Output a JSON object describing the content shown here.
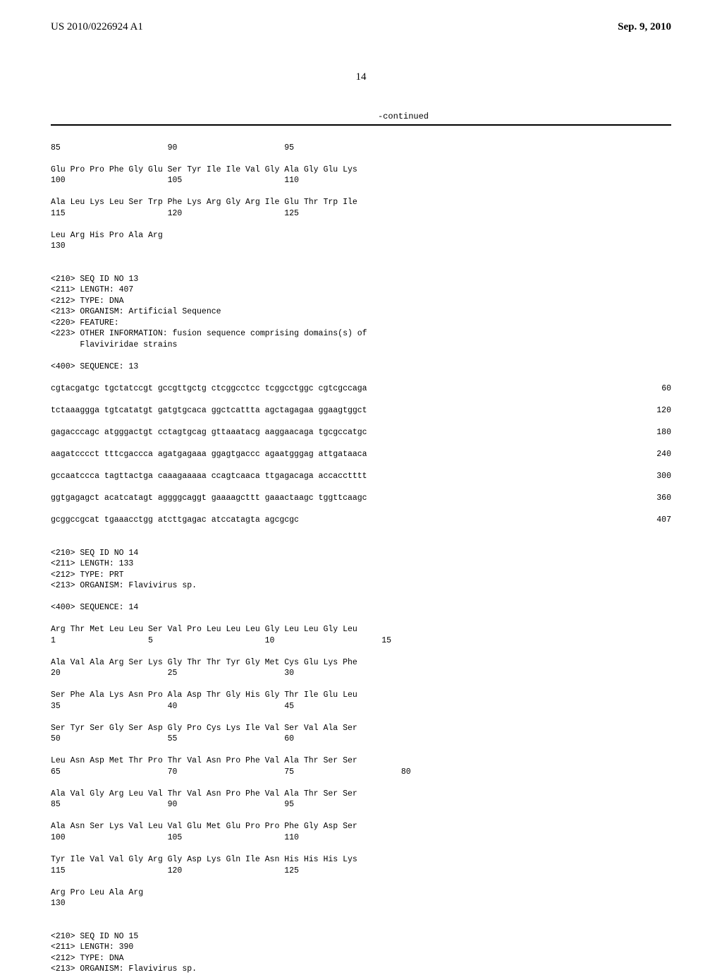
{
  "header": {
    "left": "US 2010/0226924 A1",
    "right": "Sep. 9, 2010"
  },
  "page_number": "14",
  "continued_label": "-continued",
  "sequences": {
    "block1_numbers": "85                      90                      95",
    "block1_line1": "Glu Pro Pro Phe Gly Glu Ser Tyr Ile Ile Val Gly Ala Gly Glu Lys",
    "block1_line1_nums": "100                     105                     110",
    "block1_line2": "Ala Leu Lys Leu Ser Trp Phe Lys Arg Gly Arg Ile Glu Thr Trp Ile",
    "block1_line2_nums": "115                     120                     125",
    "block1_line3": "Leu Arg His Pro Ala Arg",
    "block1_line3_nums": "130",
    "seq13_header": [
      "<210> SEQ ID NO 13",
      "<211> LENGTH: 407",
      "<212> TYPE: DNA",
      "<213> ORGANISM: Artificial Sequence",
      "<220> FEATURE:",
      "<223> OTHER INFORMATION: fusion sequence comprising domains(s) of",
      "      Flaviviridae strains"
    ],
    "seq13_label": "<400> SEQUENCE: 13",
    "seq13_lines": [
      {
        "text": "cgtacgatgc tgctatccgt gccgttgctg ctcggcctcc tcggcctggc cgtcgccaga",
        "num": "60"
      },
      {
        "text": "tctaaaggga tgtcatatgt gatgtgcaca ggctcattta agctagagaa ggaagtggct",
        "num": "120"
      },
      {
        "text": "gagacccagc atgggactgt cctagtgcag gttaaatacg aaggaacaga tgcgccatgc",
        "num": "180"
      },
      {
        "text": "aagatcccct tttcgaccca agatgagaaa ggagtgaccc agaatgggag attgataaca",
        "num": "240"
      },
      {
        "text": "gccaatccca tagttactga caaagaaaaa ccagtcaaca ttgagacaga accacctttt",
        "num": "300"
      },
      {
        "text": "ggtgagagct acatcatagt aggggcaggt gaaaagcttt gaaactaagc tggttcaagc",
        "num": "360"
      },
      {
        "text": "gcggccgcat tgaaacctgg atcttgagac atccatagta agcgcgc",
        "num": "407"
      }
    ],
    "seq14_header": [
      "<210> SEQ ID NO 14",
      "<211> LENGTH: 133",
      "<212> TYPE: PRT",
      "<213> ORGANISM: Flavivirus sp."
    ],
    "seq14_label": "<400> SEQUENCE: 14",
    "seq14_lines": [
      {
        "text": "Arg Thr Met Leu Leu Ser Val Pro Leu Leu Leu Gly Leu Leu Gly Leu",
        "nums": "1                   5                       10                      15"
      },
      {
        "text": "Ala Val Ala Arg Ser Lys Gly Thr Thr Tyr Gly Met Cys Glu Lys Phe",
        "nums": "20                      25                      30"
      },
      {
        "text": "Ser Phe Ala Lys Asn Pro Ala Asp Thr Gly His Gly Thr Ile Glu Leu",
        "nums": "35                      40                      45"
      },
      {
        "text": "Ser Tyr Ser Gly Ser Asp Gly Pro Cys Lys Ile Val Ser Val Ala Ser",
        "nums": "50                      55                      60"
      },
      {
        "text": "Leu Asn Asp Met Thr Pro Thr Val Asn Pro Phe Val Ala Thr Ser Ser",
        "nums": "65                      70                      75                      80"
      },
      {
        "text": "Ala Val Gly Arg Leu Val Thr Val Asn Pro Phe Val Ala Thr Ser Ser",
        "nums": "85                      90                      95"
      },
      {
        "text": "Ala Asn Ser Lys Val Leu Val Glu Met Glu Pro Pro Phe Gly Asp Ser",
        "nums": "100                     105                     110"
      },
      {
        "text": "Tyr Ile Val Val Gly Arg Gly Asp Lys Gln Ile Asn His His His Lys",
        "nums": "115                     120                     125"
      },
      {
        "text": "Arg Pro Leu Ala Arg",
        "nums": "130"
      }
    ],
    "seq15_header": [
      "<210> SEQ ID NO 15",
      "<211> LENGTH: 390",
      "<212> TYPE: DNA",
      "<213> ORGANISM: Flavivirus sp."
    ]
  }
}
